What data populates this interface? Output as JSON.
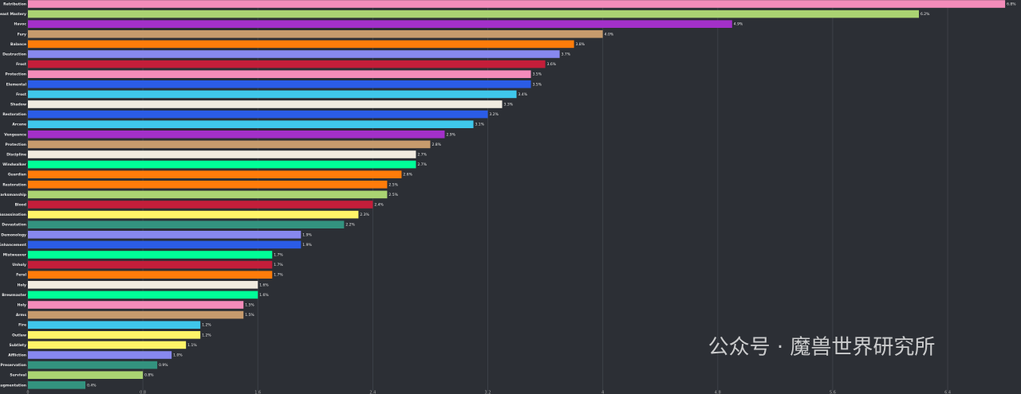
{
  "chart_data": {
    "type": "hbar",
    "categories": [
      "Retribution",
      "Beast Mastery",
      "Havoc",
      "Fury",
      "Balance",
      "Destruction",
      "Frost",
      "Protection",
      "Elemental",
      "Frost",
      "Shadow",
      "Restoration",
      "Arcane",
      "Vengeance",
      "Protection",
      "Discipline",
      "Windwalker",
      "Guardian",
      "Restoration",
      "Marksmanship",
      "Blood",
      "Assassination",
      "Devastation",
      "Demonology",
      "Enhancement",
      "Mistweaver",
      "Unholy",
      "Feral",
      "Holy",
      "Brewmaster",
      "Holy",
      "Arms",
      "Fire",
      "Outlaw",
      "Subtlety",
      "Affliction",
      "Preservation",
      "Survival",
      "Augmentation"
    ],
    "values": [
      6.8,
      6.2,
      4.9,
      4.0,
      3.8,
      3.7,
      3.6,
      3.5,
      3.5,
      3.4,
      3.3,
      3.2,
      3.1,
      2.9,
      2.8,
      2.7,
      2.7,
      2.6,
      2.5,
      2.5,
      2.4,
      2.3,
      2.2,
      1.9,
      1.9,
      1.7,
      1.7,
      1.7,
      1.6,
      1.6,
      1.5,
      1.5,
      1.2,
      1.2,
      1.1,
      1.0,
      0.9,
      0.8,
      0.4
    ],
    "value_labels": [
      "6.8%",
      "6.2%",
      "4.9%",
      "4.0%",
      "3.8%",
      "3.7%",
      "3.6%",
      "3.5%",
      "3.5%",
      "3.4%",
      "3.3%",
      "3.2%",
      "3.1%",
      "2.9%",
      "2.8%",
      "2.7%",
      "2.7%",
      "2.6%",
      "2.5%",
      "2.5%",
      "2.4%",
      "2.3%",
      "2.2%",
      "1.9%",
      "1.9%",
      "1.7%",
      "1.7%",
      "1.7%",
      "1.6%",
      "1.6%",
      "1.5%",
      "1.5%",
      "1.2%",
      "1.2%",
      "1.1%",
      "1.0%",
      "0.9%",
      "0.8%",
      "0.4%"
    ],
    "colors": [
      "#f48cba",
      "#aad372",
      "#a330c9",
      "#c69b6d",
      "#ff7c0a",
      "#8788ee",
      "#c41e3a",
      "#f48cba",
      "#2b5ce6",
      "#3fc7eb",
      "#f0ebe0",
      "#2b5ce6",
      "#3fc7eb",
      "#a330c9",
      "#c69b6d",
      "#f0ebe0",
      "#00ff98",
      "#ff7c0a",
      "#ff7c0a",
      "#aad372",
      "#c41e3a",
      "#fff468",
      "#33937f",
      "#8788ee",
      "#2b5ce6",
      "#00ff98",
      "#c41e3a",
      "#ff7c0a",
      "#f0ebe0",
      "#00ff98",
      "#f48cba",
      "#c69b6d",
      "#3fc7eb",
      "#fff468",
      "#fff468",
      "#8788ee",
      "#33937f",
      "#aad372",
      "#33937f"
    ],
    "xlim": [
      0,
      6.9
    ],
    "xticks": [
      0,
      0.8,
      1.6,
      2.4,
      3.2,
      4.0,
      4.8,
      5.6,
      6.4
    ],
    "grid": true,
    "watermark": "公众号 · 魔兽世界研究所"
  }
}
